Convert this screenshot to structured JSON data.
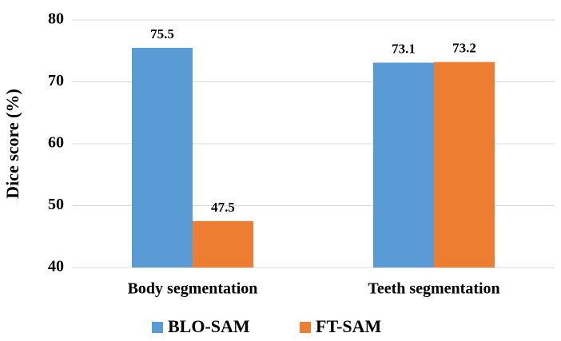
{
  "chart_data": {
    "type": "bar",
    "y_label": "Dice score (%)",
    "categories": [
      "Body segmentation",
      "Teeth segmentation"
    ],
    "series": [
      {
        "name": "BLO-SAM",
        "color": "#5b9bd5",
        "values": [
          75.5,
          73.1
        ]
      },
      {
        "name": "FT-SAM",
        "color": "#ed7d31",
        "values": [
          47.5,
          73.2
        ]
      }
    ],
    "ylim": [
      40,
      80
    ],
    "yticks": [
      40,
      50,
      60,
      70,
      80
    ],
    "grid": true,
    "legend": "bottom"
  }
}
